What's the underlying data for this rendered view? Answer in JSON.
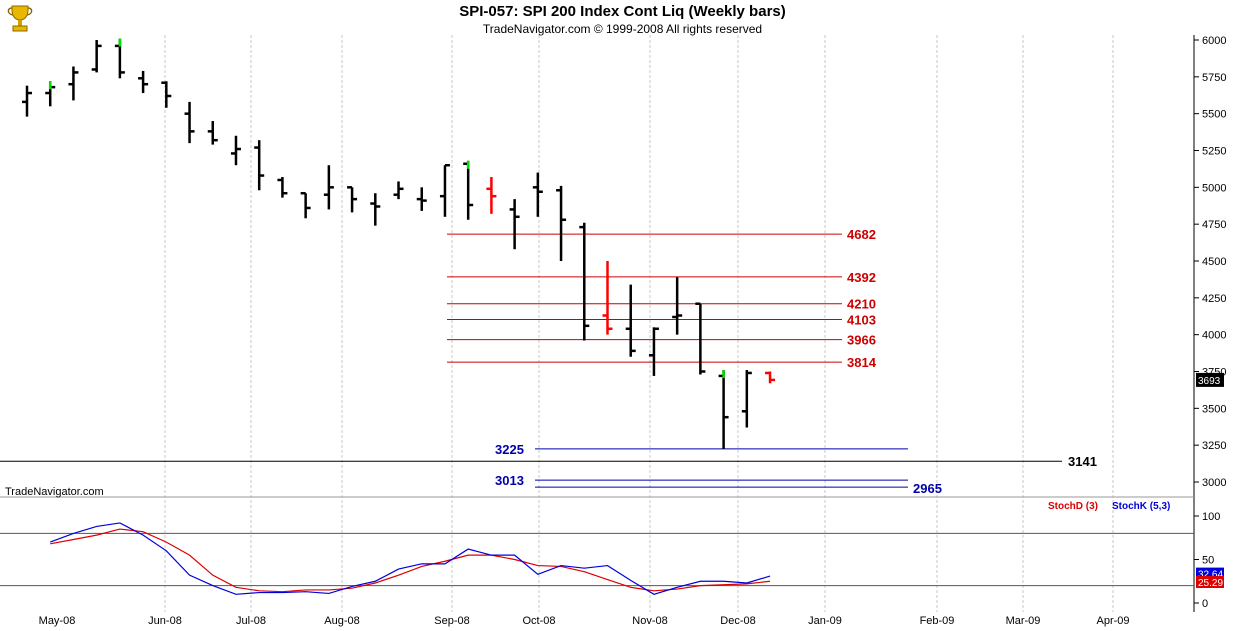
{
  "header": {
    "title": "SPI-057:  SPI 200 Index Cont Liq  (Weekly bars)",
    "subtitle": "TradeNavigator.com © 1999-2008 All rights reserved"
  },
  "watermark": "TradeNavigator.com",
  "logo_icon": "trophy-icon",
  "colors": {
    "up": "#000000",
    "down_gray": "#888888",
    "red": "#ff0000",
    "green": "#00dd00",
    "fib": "#cc0000",
    "support": "#0000aa",
    "stoch_d": "#dd0000",
    "stoch_k": "#0000dd"
  },
  "chart_data": [
    {
      "type": "bar",
      "subtype": "ohlc",
      "ylim": [
        2900,
        6050
      ],
      "yticks": [
        3000,
        3250,
        3500,
        3750,
        4000,
        4250,
        4500,
        4750,
        5000,
        5250,
        5500,
        5750,
        6000
      ],
      "xticks": [
        "May-08",
        "Jun-08",
        "Jul-08",
        "Aug-08",
        "Sep-08",
        "Oct-08",
        "Nov-08",
        "Dec-08",
        "Jan-09",
        "Feb-09",
        "Mar-09",
        "Apr-09"
      ],
      "last_price": "3693",
      "bars": [
        {
          "o": 5580,
          "h": 5690,
          "l": 5480,
          "c": 5640,
          "col": "k"
        },
        {
          "o": 5640,
          "h": 5720,
          "l": 5550,
          "c": 5680,
          "col": "g"
        },
        {
          "o": 5700,
          "h": 5820,
          "l": 5590,
          "c": 5780,
          "col": "k"
        },
        {
          "o": 5800,
          "h": 6000,
          "l": 5780,
          "c": 5960,
          "col": "k"
        },
        {
          "o": 5960,
          "h": 6010,
          "l": 5740,
          "c": 5780,
          "col": "g"
        },
        {
          "o": 5740,
          "h": 5790,
          "l": 5640,
          "c": 5700,
          "col": "k"
        },
        {
          "o": 5710,
          "h": 5720,
          "l": 5540,
          "c": 5620,
          "col": "k"
        },
        {
          "o": 5500,
          "h": 5580,
          "l": 5300,
          "c": 5380,
          "col": "k"
        },
        {
          "o": 5380,
          "h": 5450,
          "l": 5290,
          "c": 5320,
          "col": "k"
        },
        {
          "o": 5230,
          "h": 5350,
          "l": 5150,
          "c": 5260,
          "col": "k"
        },
        {
          "o": 5270,
          "h": 5320,
          "l": 4980,
          "c": 5080,
          "col": "k"
        },
        {
          "o": 5050,
          "h": 5070,
          "l": 4930,
          "c": 4960,
          "col": "k"
        },
        {
          "o": 4960,
          "h": 4960,
          "l": 4790,
          "c": 4860,
          "col": "k"
        },
        {
          "o": 4950,
          "h": 5150,
          "l": 4850,
          "c": 5000,
          "col": "k"
        },
        {
          "o": 5000,
          "h": 5000,
          "l": 4830,
          "c": 4920,
          "col": "k"
        },
        {
          "o": 4890,
          "h": 4960,
          "l": 4740,
          "c": 4870,
          "col": "k"
        },
        {
          "o": 4950,
          "h": 5040,
          "l": 4920,
          "c": 4990,
          "col": "k"
        },
        {
          "o": 4920,
          "h": 5000,
          "l": 4840,
          "c": 4910,
          "col": "k"
        },
        {
          "o": 4940,
          "h": 5150,
          "l": 4800,
          "c": 5150,
          "col": "k"
        },
        {
          "o": 5160,
          "h": 5180,
          "l": 4780,
          "c": 4880,
          "col": "g"
        },
        {
          "o": 4990,
          "h": 5070,
          "l": 4820,
          "c": 4940,
          "col": "r"
        },
        {
          "o": 4850,
          "h": 4920,
          "l": 4580,
          "c": 4800,
          "col": "k"
        },
        {
          "o": 5000,
          "h": 5100,
          "l": 4800,
          "c": 4970,
          "col": "k"
        },
        {
          "o": 4980,
          "h": 5010,
          "l": 4500,
          "c": 4780,
          "col": "k"
        },
        {
          "o": 4730,
          "h": 4760,
          "l": 3960,
          "c": 4060,
          "col": "k"
        },
        {
          "o": 4130,
          "h": 4500,
          "l": 4000,
          "c": 4040,
          "col": "r"
        },
        {
          "o": 4040,
          "h": 4340,
          "l": 3850,
          "c": 3890,
          "col": "k"
        },
        {
          "o": 3860,
          "h": 4050,
          "l": 3720,
          "c": 4040,
          "col": "k"
        },
        {
          "o": 4120,
          "h": 4390,
          "l": 4000,
          "c": 4130,
          "col": "k"
        },
        {
          "o": 4210,
          "h": 4210,
          "l": 3730,
          "c": 3750,
          "col": "k"
        },
        {
          "o": 3720,
          "h": 3760,
          "l": 3225,
          "c": 3440,
          "col": "g"
        },
        {
          "o": 3480,
          "h": 3760,
          "l": 3370,
          "c": 3740,
          "col": "k"
        },
        {
          "o": 3740,
          "h": 3750,
          "l": 3670,
          "c": 3693,
          "col": "r"
        }
      ],
      "fib_levels": [
        "4682",
        "4392",
        "4210",
        "4103",
        "3966",
        "3814"
      ],
      "support_levels": [
        "3225",
        "3013",
        "2965"
      ],
      "horizontal_level": "3141"
    },
    {
      "type": "line",
      "ylim": [
        -5,
        130
      ],
      "yticks": [
        0,
        50,
        100
      ],
      "reference_lines": [
        80,
        20
      ],
      "series": [
        {
          "name": "StochD (3)",
          "values": [
            68,
            73,
            78,
            85,
            82,
            70,
            55,
            32,
            18,
            14,
            13,
            15,
            15,
            17,
            23,
            32,
            42,
            48,
            55,
            55,
            50,
            43,
            42,
            36,
            27,
            18,
            14,
            16,
            20,
            21,
            22,
            25
          ]
        },
        {
          "name": "StochK (5,3)",
          "values": [
            70,
            80,
            88,
            92,
            78,
            60,
            32,
            20,
            10,
            12,
            12,
            13,
            11,
            19,
            25,
            39,
            45,
            45,
            62,
            55,
            55,
            33,
            43,
            40,
            43,
            26,
            10,
            18,
            25,
            25,
            23,
            31
          ]
        }
      ],
      "last_values": [
        "32.64",
        "25.29"
      ]
    }
  ]
}
